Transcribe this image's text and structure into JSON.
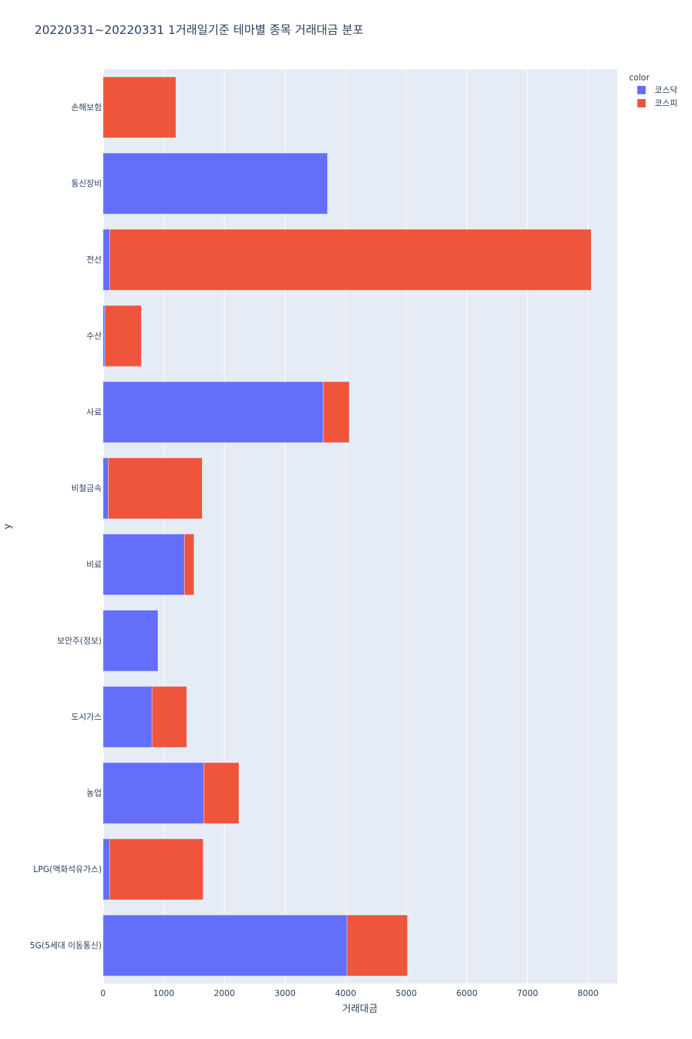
{
  "chart_data": {
    "type": "bar",
    "orientation": "horizontal",
    "barmode": "stack",
    "title": "20220331~20220331 1거래일기준 테마별 종목 거래대금 분포",
    "xlabel": "거래대금",
    "ylabel": "y",
    "xlim": [
      0,
      8480
    ],
    "x_ticks": [
      0,
      1000,
      2000,
      3000,
      4000,
      5000,
      6000,
      7000,
      8000
    ],
    "grid": true,
    "legend_title": "color",
    "legend_position": "top-right",
    "categories": [
      "5G(5세대 이동통신)",
      "LPG(액화석유가스)",
      "농업",
      "도시가스",
      "보안주(정보)",
      "비료",
      "비철금속",
      "사료",
      "수산",
      "전선",
      "통신장비",
      "손해보험"
    ],
    "series": [
      {
        "name": "코스닥",
        "color": "#636efa",
        "values": [
          4020,
          105,
          1660,
          810,
          905,
          1340,
          85,
          3630,
          30,
          110,
          3700,
          0
        ]
      },
      {
        "name": "코스피",
        "color": "#ef553b",
        "values": [
          1000,
          1545,
          580,
          570,
          0,
          160,
          1550,
          430,
          600,
          7940,
          0,
          1200
        ]
      }
    ]
  }
}
